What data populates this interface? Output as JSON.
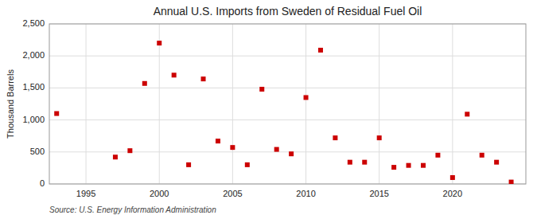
{
  "chart_data": {
    "type": "scatter",
    "title": "Annual U.S. Imports from Sweden of Residual Fuel Oil",
    "y_label": "Thousand Barrels",
    "source": "Source: U.S. Energy Information Administration",
    "x": [
      1993,
      1997,
      1998,
      1999,
      2000,
      2001,
      2002,
      2003,
      2004,
      2005,
      2006,
      2007,
      2008,
      2009,
      2010,
      2011,
      2012,
      2013,
      2014,
      2015,
      2016,
      2017,
      2018,
      2019,
      2020,
      2021,
      2022,
      2023,
      2024
    ],
    "values": [
      1100,
      420,
      520,
      1570,
      2200,
      1700,
      300,
      1640,
      670,
      570,
      300,
      1480,
      540,
      470,
      1350,
      2090,
      720,
      340,
      340,
      720,
      260,
      290,
      290,
      450,
      100,
      1090,
      450,
      340,
      30
    ],
    "color": "#cc0000",
    "marker": "square",
    "xlim": [
      1992.5,
      2025
    ],
    "ylim": [
      0,
      2500
    ],
    "xticks": [
      1995,
      2000,
      2005,
      2010,
      2015,
      2020
    ],
    "yticks": [
      0,
      500,
      {
        "value": 1000,
        "label": "1,000"
      },
      {
        "value": 1500,
        "label": "1,500"
      },
      {
        "value": 2000,
        "label": "2,000"
      },
      {
        "value": 2500,
        "label": "2,500"
      }
    ],
    "grid": true
  }
}
